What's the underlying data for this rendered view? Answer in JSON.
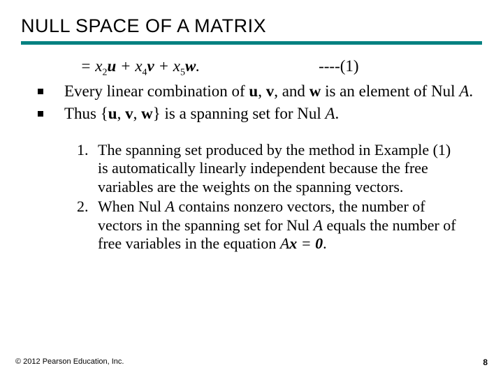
{
  "title": "NULL SPACE OF A MATRIX",
  "equation": {
    "prefix": "= ",
    "t1": "x",
    "s1": "2",
    "v1": "u",
    "t2": "x",
    "s2": "4",
    "v2": "v",
    "t3": "x",
    "s3": "5",
    "v3": "w",
    "plus": " + ",
    "dot": ".",
    "label": "----(1)"
  },
  "bullets": {
    "b1a": "Every linear combination of ",
    "b1_u": "u",
    "b1_c1": ", ",
    "b1_v": "v",
    "b1_c2": ", and ",
    "b1_w": "w",
    "b1b": " is an element of Nul ",
    "b1_A": "A",
    "b1_end": ".",
    "b2a": "Thus {",
    "b2_u": "u",
    "b2_c1": ", ",
    "b2_v": "v",
    "b2_c2": ", ",
    "b2_w": "w",
    "b2b": "} is a spanning set for Nul ",
    "b2_A": "A",
    "b2_end": "."
  },
  "numlist": {
    "n1": "The spanning set produced by the method in Example (1) is automatically linearly independent because the free variables are the weights on the spanning vectors.",
    "n2a": "When Nul ",
    "n2_A1": "A",
    "n2b": " contains nonzero vectors, the number of vectors in the spanning set for Nul ",
    "n2_A2": "A",
    "n2c": " equals the number of free variables in the equation  ",
    "n2_eq_A": "A",
    "n2_eq_x": "x",
    "n2_eq_eq": " = ",
    "n2_eq_0": "0",
    "n2d": "."
  },
  "footer": {
    "copyright": "© 2012 Pearson Education, Inc.",
    "page": "8"
  },
  "colors": {
    "rule": "#008080",
    "text": "#000000",
    "bg": "#ffffff"
  }
}
